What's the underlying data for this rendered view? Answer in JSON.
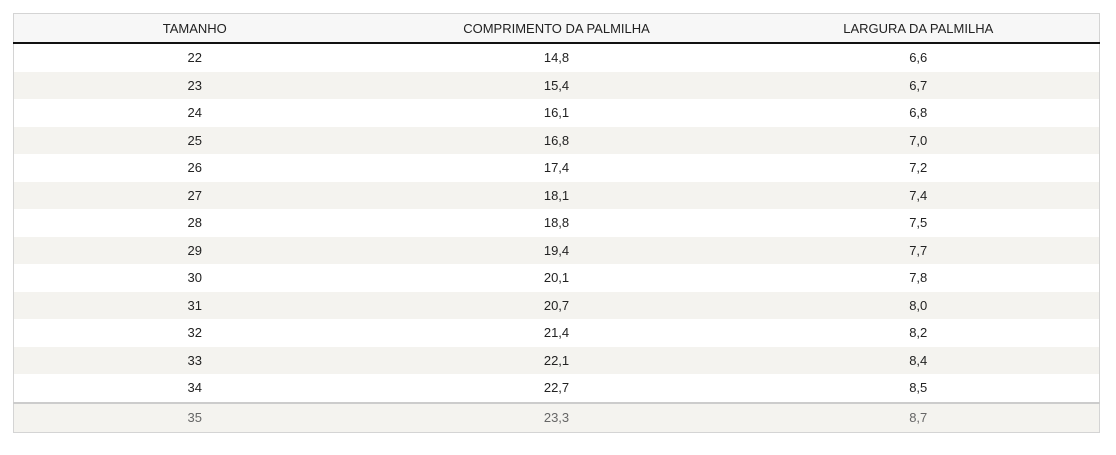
{
  "table": {
    "header": [
      "TAMANHO",
      "COMPRIMENTO DA PALMILHA",
      "LARGURA DA PALMILHA"
    ],
    "rows": [
      [
        "22",
        "14,8",
        "6,6"
      ],
      [
        "23",
        "15,4",
        "6,7"
      ],
      [
        "24",
        "16,1",
        "6,8"
      ],
      [
        "25",
        "16,8",
        "7,0"
      ],
      [
        "26",
        "17,4",
        "7,2"
      ],
      [
        "27",
        "18,1",
        "7,4"
      ],
      [
        "28",
        "18,8",
        "7,5"
      ],
      [
        "29",
        "19,4",
        "7,7"
      ],
      [
        "30",
        "20,1",
        "7,8"
      ],
      [
        "31",
        "20,7",
        "8,0"
      ],
      [
        "32",
        "21,4",
        "8,2"
      ],
      [
        "33",
        "22,1",
        "8,4"
      ],
      [
        "34",
        "22,7",
        "8,5"
      ]
    ],
    "footer": [
      "35",
      "23,3",
      "8,7"
    ]
  }
}
